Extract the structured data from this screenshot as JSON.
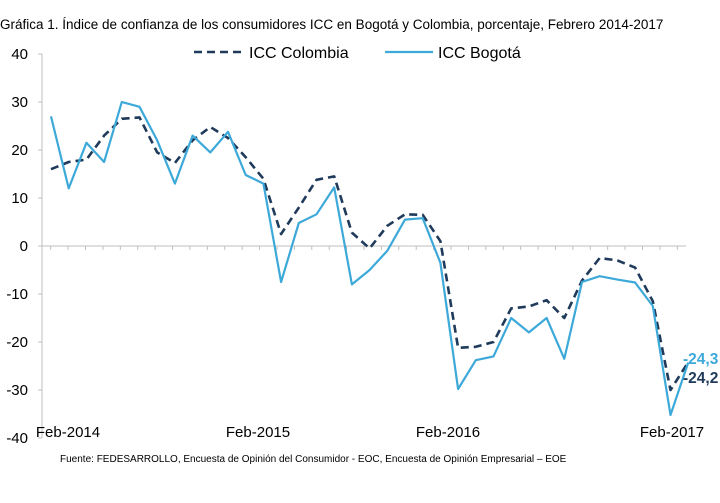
{
  "chart_data": {
    "type": "line",
    "title": "Gráfica 1.  Índice de confianza de los consumidores ICC en Bogotá y Colombia, porcentaje,  Febrero 2014-2017",
    "source": "Fuente: FEDESARROLLO, Encuesta de Opinión del Consumidor - EOC, Encuesta de Opinión Empresarial – EOE",
    "xlabel": "",
    "ylabel": "",
    "ylim": [
      -40,
      40
    ],
    "y_ticks": [
      40,
      30,
      20,
      10,
      0,
      -10,
      -20,
      -30,
      -40
    ],
    "x_tick_labels": [
      "Feb-2014",
      "Feb-2015",
      "Feb-2016",
      "Feb-2017"
    ],
    "grid": false,
    "legend_position": "top",
    "series": [
      {
        "name": "ICC Colombia",
        "color": "#1F3A5A",
        "style": "dashed",
        "values": [
          16,
          17.5,
          18,
          23,
          26.5,
          26.8,
          19.5,
          17.3,
          22,
          24.8,
          22.5,
          18.5,
          14,
          2.5,
          8,
          13.8,
          14.5,
          2.8,
          -0.5,
          4.2,
          6.6,
          6.5,
          1,
          -21.2,
          -21,
          -20,
          -13,
          -12.6,
          -11.3,
          -15,
          -7.2,
          -2.5,
          -3,
          -4.5,
          -11.5,
          -30,
          -24.2
        ],
        "end_label": "-24,2"
      },
      {
        "name": "ICC Bogotá",
        "color": "#3DA9D9",
        "style": "solid",
        "values": [
          27,
          12,
          21.5,
          17.5,
          30,
          29,
          22,
          13,
          23,
          19.5,
          23.8,
          14.8,
          13,
          -7.5,
          4.8,
          6.6,
          12.2,
          -8,
          -5,
          -1,
          5.5,
          5.8,
          -3.5,
          -29.8,
          -23.8,
          -23,
          -15,
          -18,
          -15,
          -23.5,
          -7.5,
          -6.3,
          -7,
          -7.6,
          -12.5,
          -35.2,
          -24.3
        ],
        "end_label": "-24,3"
      }
    ]
  }
}
